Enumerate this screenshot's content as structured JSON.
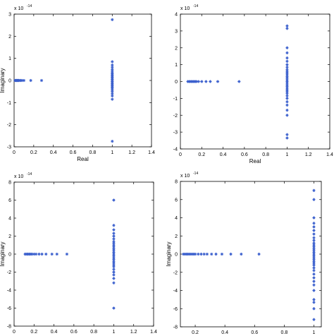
{
  "chart_data": [
    {
      "type": "scatter",
      "xlabel": "Real",
      "ylabel": "Imaginary",
      "exponent_label": "x 10",
      "exponent_power": "-14",
      "xlim": [
        0,
        1.4
      ],
      "ylim": [
        -3,
        3
      ],
      "xticks": [
        "0",
        "0.2",
        "0.4",
        "0.6",
        "0.8",
        "1",
        "1.2",
        "1.4"
      ],
      "yticks": [
        "-3",
        "-2",
        "-1",
        "0",
        "1",
        "2",
        "3"
      ],
      "marker_color": "#3a5fcd",
      "points": [
        [
          0.01,
          0
        ],
        [
          0.015,
          0
        ],
        [
          0.02,
          0
        ],
        [
          0.025,
          0
        ],
        [
          0.03,
          0
        ],
        [
          0.035,
          0
        ],
        [
          0.04,
          0
        ],
        [
          0.045,
          0
        ],
        [
          0.05,
          0
        ],
        [
          0.06,
          0
        ],
        [
          0.07,
          0
        ],
        [
          0.08,
          0
        ],
        [
          0.1,
          0
        ],
        [
          0.17,
          0
        ],
        [
          0.28,
          0
        ],
        [
          1,
          2.75
        ],
        [
          1,
          -2.75
        ],
        [
          1,
          0.85
        ],
        [
          1,
          0.7
        ],
        [
          1,
          0.6
        ],
        [
          1,
          0.5
        ],
        [
          1,
          0.42
        ],
        [
          1,
          0.35
        ],
        [
          1,
          0.3
        ],
        [
          1,
          0.25
        ],
        [
          1,
          0.2
        ],
        [
          1,
          0.15
        ],
        [
          1,
          0.1
        ],
        [
          1,
          0.05
        ],
        [
          1,
          0
        ],
        [
          1,
          -0.05
        ],
        [
          1,
          -0.1
        ],
        [
          1,
          -0.15
        ],
        [
          1,
          -0.2
        ],
        [
          1,
          -0.25
        ],
        [
          1,
          -0.3
        ],
        [
          1,
          -0.35
        ],
        [
          1,
          -0.42
        ],
        [
          1,
          -0.5
        ],
        [
          1,
          -0.6
        ],
        [
          1,
          -0.7
        ],
        [
          1,
          -0.85
        ]
      ]
    },
    {
      "type": "scatter",
      "xlabel": "Real",
      "ylabel": "",
      "exponent_label": "x 10",
      "exponent_power": "-14",
      "xlim": [
        0,
        1.4
      ],
      "ylim": [
        -4,
        4
      ],
      "xticks": [
        "0",
        "0.2",
        "0.4",
        "0.6",
        "0.8",
        "1",
        "1.2",
        "1.4"
      ],
      "yticks": [
        "-4",
        "-3",
        "-2",
        "-1",
        "0",
        "1",
        "2",
        "3",
        "4"
      ],
      "marker_color": "#3a5fcd",
      "points": [
        [
          0.07,
          0
        ],
        [
          0.08,
          0
        ],
        [
          0.09,
          0
        ],
        [
          0.1,
          0
        ],
        [
          0.11,
          0
        ],
        [
          0.12,
          0
        ],
        [
          0.13,
          0
        ],
        [
          0.14,
          0
        ],
        [
          0.15,
          0
        ],
        [
          0.17,
          0
        ],
        [
          0.2,
          0
        ],
        [
          0.24,
          0
        ],
        [
          0.28,
          0
        ],
        [
          0.35,
          0
        ],
        [
          0.55,
          0
        ],
        [
          1,
          3.3
        ],
        [
          1,
          3.15
        ],
        [
          1,
          -3.15
        ],
        [
          1,
          -3.35
        ],
        [
          1,
          2.0
        ],
        [
          1,
          1.7
        ],
        [
          1,
          1.4
        ],
        [
          1,
          1.2
        ],
        [
          1,
          1.0
        ],
        [
          1,
          0.85
        ],
        [
          1,
          0.7
        ],
        [
          1,
          0.6
        ],
        [
          1,
          0.5
        ],
        [
          1,
          0.4
        ],
        [
          1,
          0.3
        ],
        [
          1,
          0.2
        ],
        [
          1,
          0.1
        ],
        [
          1,
          0
        ],
        [
          1,
          -0.1
        ],
        [
          1,
          -0.2
        ],
        [
          1,
          -0.3
        ],
        [
          1,
          -0.4
        ],
        [
          1,
          -0.5
        ],
        [
          1,
          -0.6
        ],
        [
          1,
          -0.7
        ],
        [
          1,
          -0.85
        ],
        [
          1,
          -1.0
        ],
        [
          1,
          -1.2
        ],
        [
          1,
          -1.4
        ],
        [
          1,
          -1.7
        ],
        [
          1,
          -2.0
        ]
      ]
    },
    {
      "type": "scatter",
      "xlabel": "Real",
      "ylabel": "Imaginary",
      "exponent_label": "x 10",
      "exponent_power": "-14",
      "xlim": [
        0,
        1.4
      ],
      "ylim": [
        -8,
        8
      ],
      "xticks": [
        "0",
        "0.2",
        "0.4",
        "0.6",
        "0.8",
        "1",
        "1.2",
        "1.4"
      ],
      "yticks": [
        "-8",
        "-6",
        "-4",
        "-2",
        "0",
        "2",
        "4",
        "6",
        "8"
      ],
      "marker_color": "#3a5fcd",
      "points": [
        [
          0.11,
          0
        ],
        [
          0.12,
          0
        ],
        [
          0.13,
          0
        ],
        [
          0.14,
          0
        ],
        [
          0.15,
          0
        ],
        [
          0.16,
          0
        ],
        [
          0.17,
          0
        ],
        [
          0.18,
          0
        ],
        [
          0.2,
          0
        ],
        [
          0.22,
          0
        ],
        [
          0.25,
          0
        ],
        [
          0.28,
          0
        ],
        [
          0.32,
          0
        ],
        [
          0.38,
          0
        ],
        [
          0.43,
          0
        ],
        [
          0.53,
          0
        ],
        [
          1,
          6.0
        ],
        [
          1,
          -6.0
        ],
        [
          1,
          3.2
        ],
        [
          1,
          2.7
        ],
        [
          1,
          2.3
        ],
        [
          1,
          2.0
        ],
        [
          1,
          1.7
        ],
        [
          1,
          1.4
        ],
        [
          1,
          1.2
        ],
        [
          1,
          1.0
        ],
        [
          1,
          0.8
        ],
        [
          1,
          0.6
        ],
        [
          1,
          0.4
        ],
        [
          1,
          0.2
        ],
        [
          1,
          0
        ],
        [
          1,
          -0.2
        ],
        [
          1,
          -0.4
        ],
        [
          1,
          -0.6
        ],
        [
          1,
          -0.8
        ],
        [
          1,
          -1.0
        ],
        [
          1,
          -1.2
        ],
        [
          1,
          -1.4
        ],
        [
          1,
          -1.7
        ],
        [
          1,
          -2.0
        ],
        [
          1,
          -2.3
        ],
        [
          1,
          -2.7
        ],
        [
          1,
          -3.2
        ]
      ]
    },
    {
      "type": "scatter",
      "xlabel": "Real",
      "ylabel": "Imaginary",
      "exponent_label": "x 10",
      "exponent_power": "-14",
      "xlim": [
        0.1,
        1.05
      ],
      "ylim": [
        -8,
        8
      ],
      "xticks": [
        "0.2",
        "0.4",
        "0.6",
        "0.8",
        "1"
      ],
      "yticks": [
        "-8",
        "-6",
        "-4",
        "-2",
        "0",
        "2",
        "4",
        "6",
        "8"
      ],
      "marker_color": "#3a5fcd",
      "points": [
        [
          0.12,
          0
        ],
        [
          0.13,
          0
        ],
        [
          0.14,
          0
        ],
        [
          0.15,
          0
        ],
        [
          0.16,
          0
        ],
        [
          0.17,
          0
        ],
        [
          0.18,
          0
        ],
        [
          0.19,
          0
        ],
        [
          0.2,
          0
        ],
        [
          0.22,
          0
        ],
        [
          0.24,
          0
        ],
        [
          0.26,
          0
        ],
        [
          0.28,
          0
        ],
        [
          0.31,
          0
        ],
        [
          0.34,
          0
        ],
        [
          0.38,
          0
        ],
        [
          0.44,
          0
        ],
        [
          0.51,
          0
        ],
        [
          0.63,
          0
        ],
        [
          1,
          7.0
        ],
        [
          1,
          6.0
        ],
        [
          1,
          -6.0
        ],
        [
          1,
          -7.2
        ],
        [
          1,
          4.0
        ],
        [
          1,
          3.4
        ],
        [
          1,
          3.0
        ],
        [
          1,
          2.6
        ],
        [
          1,
          2.2
        ],
        [
          1,
          1.8
        ],
        [
          1,
          1.5
        ],
        [
          1,
          1.2
        ],
        [
          1,
          1.0
        ],
        [
          1,
          0.8
        ],
        [
          1,
          0.6
        ],
        [
          1,
          0.4
        ],
        [
          1,
          0.2
        ],
        [
          1,
          0
        ],
        [
          1,
          -0.2
        ],
        [
          1,
          -0.4
        ],
        [
          1,
          -0.6
        ],
        [
          1,
          -0.8
        ],
        [
          1,
          -1.0
        ],
        [
          1,
          -1.2
        ],
        [
          1,
          -1.5
        ],
        [
          1,
          -1.8
        ],
        [
          1,
          -2.2
        ],
        [
          1,
          -2.6
        ],
        [
          1,
          -3.0
        ],
        [
          1,
          -3.4
        ],
        [
          1,
          -4.0
        ],
        [
          1,
          -5.0
        ],
        [
          1,
          -5.3
        ]
      ]
    }
  ]
}
